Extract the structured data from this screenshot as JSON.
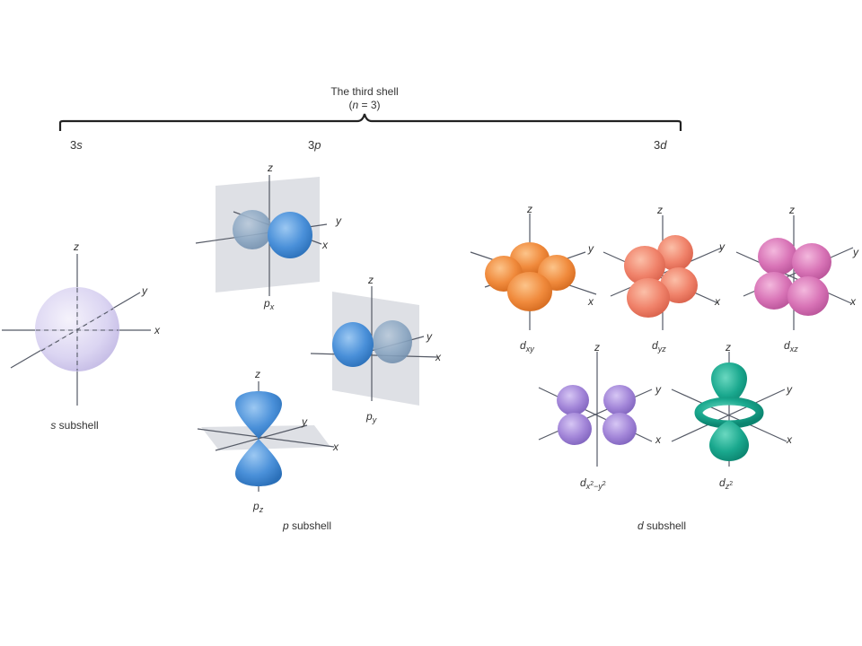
{
  "shell": {
    "title": "The third shell",
    "n_label": "(n = 3)",
    "n_var": "n",
    "n_eq": " = 3"
  },
  "subshell_headers": {
    "s": {
      "num": "3",
      "letter": "s"
    },
    "p": {
      "num": "3",
      "letter": "p"
    },
    "d": {
      "num": "3",
      "letter": "d"
    }
  },
  "axis_labels": {
    "x": "x",
    "y": "y",
    "z": "z"
  },
  "orbitals": {
    "s": {
      "base": "s",
      "sub": "",
      "caption_suffix": " subshell",
      "color": "#cfc8ea"
    },
    "px": {
      "base": "p",
      "sub": "x",
      "color": "#4a90d9"
    },
    "py": {
      "base": "p",
      "sub": "y",
      "color": "#4a90d9"
    },
    "pz": {
      "base": "p",
      "sub": "z",
      "color": "#4a90d9"
    },
    "dxy": {
      "base": "d",
      "sub": "xy",
      "color": "#f08a3c"
    },
    "dyz": {
      "base": "d",
      "sub": "yz",
      "color": "#f0826a"
    },
    "dxz": {
      "base": "d",
      "sub": "xz",
      "color": "#d873b6"
    },
    "dx2y2": {
      "base": "d",
      "sub_parts": [
        "x",
        "2",
        "−",
        "y",
        "2"
      ],
      "color": "#a285d8"
    },
    "dz2": {
      "base": "d",
      "sub_parts": [
        "z",
        "2"
      ],
      "color": "#1aa88e"
    }
  },
  "group_captions": {
    "s": {
      "letter": "s",
      "suffix": " subshell"
    },
    "p": {
      "letter": "p",
      "suffix": " subshell"
    },
    "d": {
      "letter": "d",
      "suffix": " subshell"
    }
  }
}
